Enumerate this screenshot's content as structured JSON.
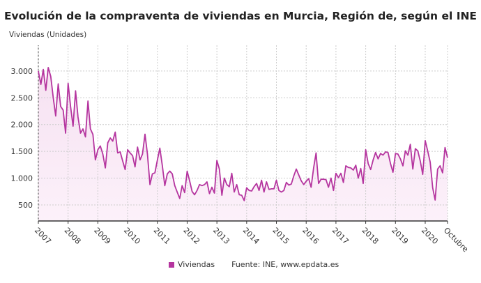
{
  "chart_data": {
    "type": "area",
    "title": "Evolución de la compraventa de viviendas en Murcia, Región de, según el INE",
    "ylabel": "Viviendas (Unidades)",
    "xlabel": "",
    "ylim": [
      200,
      3480
    ],
    "yticks": [
      500,
      1000,
      1500,
      2000,
      2500,
      3000
    ],
    "ytick_labels": [
      "500",
      "1.000",
      "1.500",
      "2.000",
      "2.500",
      "3.000"
    ],
    "xtick_labels": [
      "2007",
      "2008",
      "2009",
      "2010",
      "2011",
      "2012",
      "2013",
      "2014",
      "2015",
      "2016",
      "2017",
      "2018",
      "2019",
      "2020",
      "Octubre"
    ],
    "start": "2007-01",
    "end": "2020-10",
    "grid": true,
    "legend_position": "bottom",
    "series": [
      {
        "name": "Viviendas",
        "color": "#b5359f",
        "values": [
          3000,
          2750,
          3030,
          2640,
          3065,
          2900,
          2510,
          2160,
          2760,
          2340,
          2270,
          1840,
          2770,
          2340,
          1970,
          2630,
          2140,
          1840,
          1920,
          1770,
          2440,
          1920,
          1815,
          1340,
          1530,
          1600,
          1450,
          1190,
          1660,
          1750,
          1690,
          1860,
          1470,
          1490,
          1320,
          1160,
          1530,
          1470,
          1420,
          1210,
          1580,
          1340,
          1450,
          1820,
          1450,
          880,
          1080,
          1100,
          1340,
          1560,
          1230,
          860,
          1080,
          1130,
          1080,
          860,
          740,
          620,
          860,
          730,
          1130,
          950,
          750,
          690,
          770,
          880,
          860,
          880,
          930,
          710,
          830,
          720,
          1330,
          1170,
          680,
          1000,
          880,
          840,
          1090,
          740,
          880,
          690,
          680,
          580,
          820,
          770,
          760,
          840,
          900,
          770,
          960,
          740,
          930,
          790,
          800,
          800,
          960,
          770,
          740,
          770,
          920,
          870,
          890,
          1040,
          1170,
          1060,
          950,
          880,
          940,
          990,
          830,
          1190,
          1470,
          900,
          980,
          980,
          970,
          830,
          1000,
          770,
          1090,
          1010,
          1090,
          920,
          1230,
          1200,
          1190,
          1150,
          1240,
          1000,
          1180,
          900,
          1530,
          1270,
          1160,
          1340,
          1480,
          1360,
          1460,
          1430,
          1490,
          1480,
          1270,
          1110,
          1460,
          1450,
          1360,
          1230,
          1510,
          1430,
          1630,
          1170,
          1550,
          1510,
          1320,
          1070,
          1700,
          1510,
          1300,
          820,
          590,
          1170,
          1230,
          1100,
          1570,
          1380
        ]
      }
    ],
    "source": "Fuente: INE, www.epdata.es"
  }
}
